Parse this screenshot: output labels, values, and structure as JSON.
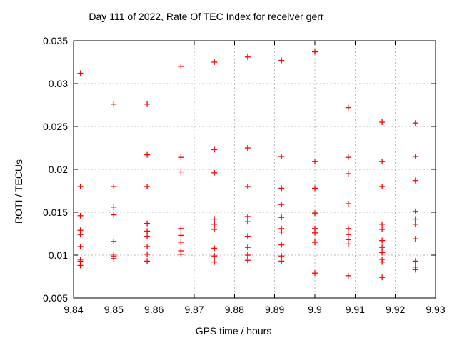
{
  "chart_data": {
    "type": "scatter",
    "title": "Day 111 of 2022, Rate Of TEC Index for receiver gerr",
    "xlabel": "GPS time / hours",
    "ylabel": "ROTI / TECUs",
    "xlim": [
      9.84,
      9.93
    ],
    "ylim": [
      0.005,
      0.035
    ],
    "grid": true,
    "legend": "none",
    "marker": {
      "shape": "plus",
      "color": "#ff0000",
      "size": 8
    },
    "colors": {
      "background": "#ffffff",
      "border": "#000000",
      "gridline": "#b8b8b8",
      "text": "#000000",
      "marker": "#ff0000"
    },
    "x_ticks": [
      {
        "value": 9.84,
        "label": "9.84"
      },
      {
        "value": 9.85,
        "label": "9.85"
      },
      {
        "value": 9.86,
        "label": "9.86"
      },
      {
        "value": 9.87,
        "label": "9.87"
      },
      {
        "value": 9.88,
        "label": "9.88"
      },
      {
        "value": 9.89,
        "label": "9.89"
      },
      {
        "value": 9.9,
        "label": "9.9"
      },
      {
        "value": 9.91,
        "label": "9.91"
      },
      {
        "value": 9.92,
        "label": "9.92"
      },
      {
        "value": 9.93,
        "label": "9.93"
      }
    ],
    "y_ticks": [
      {
        "value": 0.005,
        "label": "0.005"
      },
      {
        "value": 0.01,
        "label": "0.01"
      },
      {
        "value": 0.015,
        "label": "0.015"
      },
      {
        "value": 0.02,
        "label": "0.02"
      },
      {
        "value": 0.025,
        "label": "0.025"
      },
      {
        "value": 0.03,
        "label": "0.03"
      },
      {
        "value": 0.035,
        "label": "0.035"
      }
    ],
    "series": [
      {
        "name": "ROTI",
        "points": [
          [
            9.8417,
            0.0312
          ],
          [
            9.8417,
            0.018
          ],
          [
            9.8417,
            0.0146
          ],
          [
            9.8417,
            0.0129
          ],
          [
            9.8417,
            0.0124
          ],
          [
            9.8417,
            0.011
          ],
          [
            9.8417,
            0.0095
          ],
          [
            9.8417,
            0.0093
          ],
          [
            9.8417,
            0.0088
          ],
          [
            9.85,
            0.0276
          ],
          [
            9.85,
            0.018
          ],
          [
            9.85,
            0.0156
          ],
          [
            9.85,
            0.0147
          ],
          [
            9.85,
            0.0116
          ],
          [
            9.85,
            0.0101
          ],
          [
            9.85,
            0.0099
          ],
          [
            9.85,
            0.0096
          ],
          [
            9.8583,
            0.0276
          ],
          [
            9.8583,
            0.0217
          ],
          [
            9.8583,
            0.018
          ],
          [
            9.8583,
            0.0137
          ],
          [
            9.8583,
            0.0128
          ],
          [
            9.8583,
            0.0122
          ],
          [
            9.8583,
            0.011
          ],
          [
            9.8583,
            0.0101
          ],
          [
            9.8583,
            0.0093
          ],
          [
            9.8667,
            0.032
          ],
          [
            9.8667,
            0.0214
          ],
          [
            9.8667,
            0.0197
          ],
          [
            9.8667,
            0.0131
          ],
          [
            9.8667,
            0.0123
          ],
          [
            9.8667,
            0.0115
          ],
          [
            9.8667,
            0.0105
          ],
          [
            9.8667,
            0.0101
          ],
          [
            9.875,
            0.0325
          ],
          [
            9.875,
            0.0223
          ],
          [
            9.875,
            0.0196
          ],
          [
            9.875,
            0.0142
          ],
          [
            9.875,
            0.0136
          ],
          [
            9.875,
            0.013
          ],
          [
            9.875,
            0.0108
          ],
          [
            9.875,
            0.0099
          ],
          [
            9.875,
            0.0092
          ],
          [
            9.8833,
            0.0331
          ],
          [
            9.8833,
            0.0225
          ],
          [
            9.8833,
            0.018
          ],
          [
            9.8833,
            0.0145
          ],
          [
            9.8833,
            0.0139
          ],
          [
            9.8833,
            0.0122
          ],
          [
            9.8833,
            0.0109
          ],
          [
            9.8833,
            0.01
          ],
          [
            9.8833,
            0.0094
          ],
          [
            9.8917,
            0.0327
          ],
          [
            9.8917,
            0.0215
          ],
          [
            9.8917,
            0.0178
          ],
          [
            9.8917,
            0.0159
          ],
          [
            9.8917,
            0.0144
          ],
          [
            9.8917,
            0.0131
          ],
          [
            9.8917,
            0.0127
          ],
          [
            9.8917,
            0.0112
          ],
          [
            9.8917,
            0.0099
          ],
          [
            9.8917,
            0.0093
          ],
          [
            9.9,
            0.0337
          ],
          [
            9.9,
            0.0209
          ],
          [
            9.9,
            0.0178
          ],
          [
            9.9,
            0.0149
          ],
          [
            9.9,
            0.0131
          ],
          [
            9.9,
            0.0126
          ],
          [
            9.9,
            0.0115
          ],
          [
            9.9,
            0.0079
          ],
          [
            9.9083,
            0.0272
          ],
          [
            9.9083,
            0.0214
          ],
          [
            9.9083,
            0.0195
          ],
          [
            9.9083,
            0.016
          ],
          [
            9.9083,
            0.0131
          ],
          [
            9.9083,
            0.0124
          ],
          [
            9.9083,
            0.0118
          ],
          [
            9.9083,
            0.0113
          ],
          [
            9.9083,
            0.0076
          ],
          [
            9.9167,
            0.0255
          ],
          [
            9.9167,
            0.0209
          ],
          [
            9.9167,
            0.018
          ],
          [
            9.9167,
            0.0136
          ],
          [
            9.9167,
            0.013
          ],
          [
            9.9167,
            0.0117
          ],
          [
            9.9167,
            0.0109
          ],
          [
            9.9167,
            0.0103
          ],
          [
            9.9167,
            0.0095
          ],
          [
            9.9167,
            0.0092
          ],
          [
            9.9167,
            0.0074
          ],
          [
            9.925,
            0.0254
          ],
          [
            9.925,
            0.0215
          ],
          [
            9.925,
            0.0187
          ],
          [
            9.925,
            0.0151
          ],
          [
            9.925,
            0.0142
          ],
          [
            9.925,
            0.0136
          ],
          [
            9.925,
            0.0119
          ],
          [
            9.925,
            0.0093
          ],
          [
            9.925,
            0.0086
          ],
          [
            9.925,
            0.0083
          ]
        ]
      }
    ]
  }
}
